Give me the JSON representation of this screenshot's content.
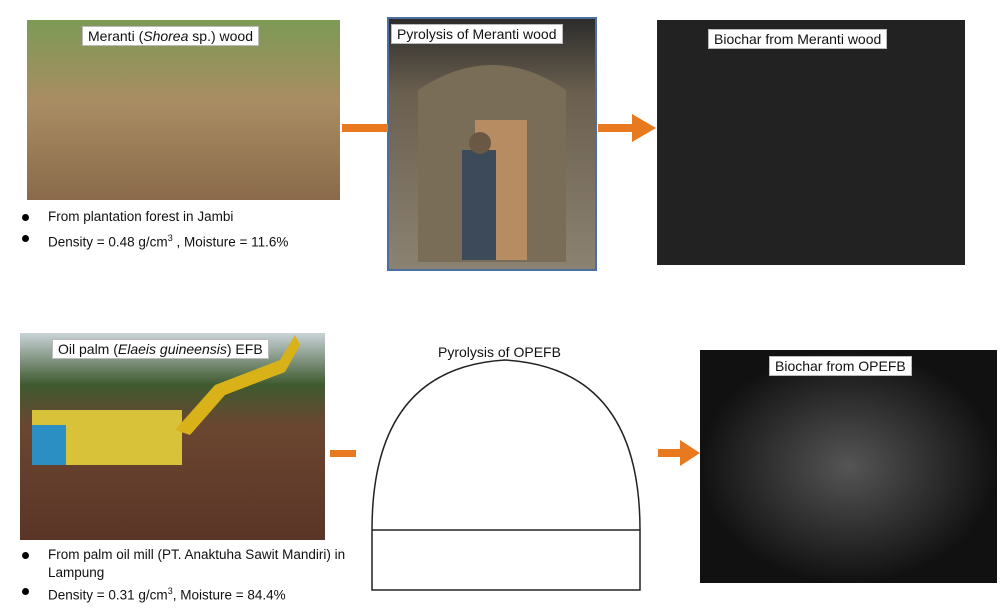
{
  "top_row": {
    "source": {
      "label": {
        "before": "Meranti (",
        "italic": "Shorea",
        "after": " sp.) wood"
      },
      "bullets": [
        {
          "text": "From plantation forest in Jambi"
        },
        {
          "text": "Density = 0.48 g/cm",
          "sup": "3",
          "after": " , Moisture = 11.6%"
        }
      ]
    },
    "process": {
      "label": "Pyrolysis of Meranti wood"
    },
    "product": {
      "label": "Biochar from Meranti wood"
    }
  },
  "bottom_row": {
    "source": {
      "label": {
        "before": "Oil palm (",
        "italic": "Elaeis guineensis",
        "after": ") EFB"
      },
      "bullets": [
        {
          "text": "From palm oil mill (PT. Anaktuha Sawit Mandiri) in Lampung"
        },
        {
          "text": "Density = 0.31 g/cm",
          "sup": "3",
          "after": ", Moisture = 84.4%"
        }
      ]
    },
    "process": {
      "label": "Pyrolysis of OPEFB"
    },
    "product": {
      "label": "Biochar from OPEFB"
    }
  }
}
